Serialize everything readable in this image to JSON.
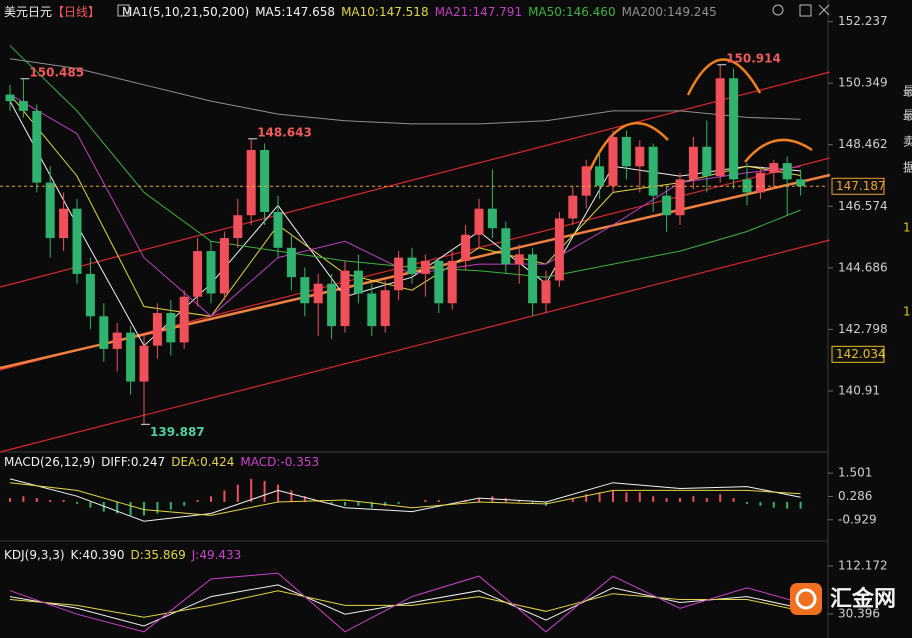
{
  "chart_data": [
    {
      "type": "candlestick",
      "title": "美元日元",
      "period": "【日线】",
      "indicator": "MA1(5,10,21,50,200)",
      "up_color": "#f0505a",
      "down_color": "#2fb36e",
      "ylim": [
        139.1,
        152.9
      ],
      "yticks": [
        152.237,
        150.349,
        148.462,
        146.574,
        144.686,
        142.798,
        140.91
      ],
      "candles": [
        [
          150.0,
          150.3,
          149.5,
          149.8
        ],
        [
          149.8,
          150.485,
          149.3,
          149.5
        ],
        [
          149.5,
          149.7,
          147.0,
          147.3
        ],
        [
          147.3,
          147.8,
          145.0,
          145.6
        ],
        [
          145.6,
          147.0,
          145.2,
          146.5
        ],
        [
          146.5,
          146.8,
          144.2,
          144.5
        ],
        [
          144.5,
          145.0,
          142.8,
          143.2
        ],
        [
          143.2,
          143.6,
          141.8,
          142.2
        ],
        [
          142.2,
          143.0,
          141.5,
          142.7
        ],
        [
          142.7,
          142.9,
          140.8,
          141.2
        ],
        [
          141.2,
          142.6,
          139.887,
          142.3
        ],
        [
          142.3,
          143.6,
          141.9,
          143.3
        ],
        [
          143.3,
          143.7,
          142.0,
          142.4
        ],
        [
          142.4,
          144.0,
          142.2,
          143.8
        ],
        [
          143.8,
          145.6,
          143.5,
          145.2
        ],
        [
          145.2,
          145.5,
          143.6,
          143.9
        ],
        [
          143.9,
          145.8,
          143.7,
          145.6
        ],
        [
          145.6,
          146.8,
          145.3,
          146.3
        ],
        [
          146.3,
          148.643,
          146.0,
          148.3
        ],
        [
          148.3,
          148.5,
          146.0,
          146.4
        ],
        [
          146.4,
          146.9,
          145.0,
          145.3
        ],
        [
          145.3,
          145.7,
          144.0,
          144.4
        ],
        [
          144.4,
          144.7,
          143.2,
          143.6
        ],
        [
          143.6,
          144.5,
          142.6,
          144.2
        ],
        [
          144.2,
          144.5,
          142.5,
          142.9
        ],
        [
          142.9,
          144.9,
          142.7,
          144.6
        ],
        [
          144.6,
          145.1,
          143.6,
          143.9
        ],
        [
          143.9,
          144.2,
          142.6,
          142.9
        ],
        [
          142.9,
          144.3,
          142.7,
          144.0
        ],
        [
          144.0,
          145.2,
          143.7,
          145.0
        ],
        [
          145.0,
          145.3,
          144.2,
          144.5
        ],
        [
          144.5,
          145.1,
          143.8,
          144.9
        ],
        [
          144.9,
          145.0,
          143.3,
          143.6
        ],
        [
          143.6,
          145.2,
          143.4,
          144.9
        ],
        [
          144.9,
          146.0,
          144.6,
          145.7
        ],
        [
          145.7,
          146.8,
          145.3,
          146.5
        ],
        [
          146.5,
          147.7,
          145.6,
          145.9
        ],
        [
          145.9,
          146.1,
          144.5,
          144.8
        ],
        [
          144.8,
          145.4,
          144.2,
          145.1
        ],
        [
          145.1,
          145.3,
          143.2,
          143.6
        ],
        [
          143.6,
          144.6,
          143.3,
          144.3
        ],
        [
          144.3,
          146.4,
          144.1,
          146.2
        ],
        [
          146.2,
          147.2,
          146.0,
          146.9
        ],
        [
          146.9,
          148.0,
          146.5,
          147.8
        ],
        [
          147.8,
          148.2,
          146.8,
          147.2
        ],
        [
          147.2,
          148.9,
          147.0,
          148.7
        ],
        [
          148.7,
          148.9,
          147.4,
          147.8
        ],
        [
          147.8,
          148.6,
          147.0,
          148.4
        ],
        [
          148.4,
          148.5,
          146.4,
          146.9
        ],
        [
          146.9,
          147.2,
          145.8,
          146.3
        ],
        [
          146.3,
          147.6,
          146.0,
          147.4
        ],
        [
          147.4,
          148.7,
          147.1,
          148.4
        ],
        [
          148.4,
          149.2,
          147.0,
          147.5
        ],
        [
          147.5,
          150.914,
          147.3,
          150.5
        ],
        [
          150.5,
          150.8,
          147.1,
          147.4
        ],
        [
          147.4,
          147.9,
          146.6,
          147.0
        ],
        [
          147.0,
          147.8,
          146.8,
          147.6
        ],
        [
          147.6,
          148.0,
          147.1,
          147.9
        ],
        [
          147.9,
          148.1,
          146.3,
          147.4
        ],
        [
          147.4,
          147.7,
          146.9,
          147.187
        ]
      ],
      "ma_x": [
        0,
        5,
        10,
        15,
        20,
        25,
        30,
        35,
        40,
        45,
        50,
        55,
        59
      ],
      "series": [
        {
          "name": "MA5:147.658",
          "color": "#f2f2f2",
          "values": [
            149.8,
            146,
            142.3,
            144.2,
            146.6,
            143.8,
            144.4,
            145.8,
            144.2,
            147.8,
            147.5,
            147.8,
            147.658
          ]
        },
        {
          "name": "MA10:147.518",
          "color": "#e3d645",
          "values": [
            150,
            147.5,
            143.5,
            143.2,
            146,
            144.5,
            144,
            145.3,
            144.8,
            147,
            147.3,
            147.8,
            147.518
          ]
        },
        {
          "name": "MA21:147.791",
          "color": "#c23fc6",
          "values": [
            150,
            148.8,
            145,
            143.2,
            145,
            145.5,
            144.5,
            144.8,
            144.8,
            146,
            147.3,
            147.6,
            147.791
          ]
        },
        {
          "name": "MA50:146.460",
          "color": "#3db43f",
          "values": [
            151.5,
            149.5,
            147,
            145.5,
            145.2,
            144.9,
            144.7,
            144.6,
            144.4,
            144.8,
            145.2,
            145.8,
            146.46
          ]
        },
        {
          "name": "MA200:149.245",
          "color": "#8f8f8f",
          "values": [
            151.1,
            150.8,
            150.3,
            149.8,
            149.4,
            149.2,
            149.1,
            149.1,
            149.2,
            149.5,
            149.5,
            149.3,
            149.245
          ]
        }
      ],
      "annotations": [
        150.485,
        148.643,
        150.914,
        139.887
      ],
      "price_markers": [
        {
          "value": 147.187,
          "color": "#f0a030"
        },
        {
          "value": 142.034,
          "color": "#e8c020"
        }
      ]
    },
    {
      "type": "macd",
      "title": "MACD(26,12,9)",
      "ylim": [
        -1.46,
        2.08
      ],
      "yticks": [
        1.501,
        0.286,
        -0.929
      ],
      "x": [
        0,
        5,
        10,
        15,
        20,
        25,
        30,
        35,
        40,
        45,
        50,
        55,
        59
      ],
      "series": [
        {
          "name": "DIFF:0.247",
          "color": "#f2f2f2",
          "values": [
            1.2,
            0.3,
            -1.0,
            -0.6,
            0.6,
            -0.3,
            -0.5,
            0.2,
            0.0,
            1.0,
            0.7,
            0.8,
            0.247
          ]
        },
        {
          "name": "DEA:0.424",
          "color": "#e3d645",
          "values": [
            1.0,
            0.6,
            -0.4,
            -0.7,
            0.0,
            0.1,
            -0.3,
            0.0,
            -0.1,
            0.6,
            0.6,
            0.6,
            0.424
          ]
        }
      ],
      "histogram": {
        "name": "MACD:-0.353",
        "color": "#d040d0",
        "values": [
          0.2,
          0.3,
          0.2,
          0.1,
          0.1,
          -0.1,
          -0.3,
          -0.5,
          -0.6,
          -0.7,
          -0.7,
          -0.6,
          -0.4,
          -0.2,
          0.1,
          0.3,
          0.6,
          0.9,
          1.2,
          1.1,
          0.9,
          0.6,
          0.3,
          0.1,
          -0.1,
          -0.2,
          -0.2,
          -0.3,
          -0.2,
          -0.1,
          0.0,
          0.1,
          0.1,
          0.0,
          0.1,
          0.2,
          0.3,
          0.2,
          0.1,
          -0.1,
          -0.2,
          0.0,
          0.2,
          0.4,
          0.5,
          0.6,
          0.5,
          0.5,
          0.3,
          0.2,
          0.2,
          0.3,
          0.2,
          0.4,
          0.2,
          -0.1,
          -0.2,
          -0.3,
          -0.35,
          -0.353
        ]
      }
    },
    {
      "type": "kdj",
      "title": "KDJ(9,3,3)",
      "ylim": [
        -0.3,
        129.2
      ],
      "yticks": [
        112.172,
        30.396
      ],
      "x": [
        0,
        5,
        10,
        15,
        20,
        25,
        30,
        35,
        40,
        45,
        50,
        55,
        59
      ],
      "series": [
        {
          "name": "K:40.390",
          "color": "#f2f2f2",
          "values": [
            60,
            40,
            10,
            60,
            80,
            30,
            50,
            70,
            20,
            75,
            50,
            60,
            40.39
          ]
        },
        {
          "name": "D:35.869",
          "color": "#e3d645",
          "values": [
            55,
            45,
            25,
            45,
            70,
            45,
            45,
            60,
            35,
            65,
            55,
            55,
            35.869
          ]
        },
        {
          "name": "J:49.433",
          "color": "#d040d0",
          "values": [
            70,
            30,
            0,
            90,
            100,
            0,
            60,
            95,
            0,
            95,
            40,
            75,
            49.433
          ]
        }
      ]
    }
  ],
  "side_text": [
    "最",
    "最",
    "卖",
    "据",
    "1",
    "1"
  ],
  "logo": "汇金网"
}
